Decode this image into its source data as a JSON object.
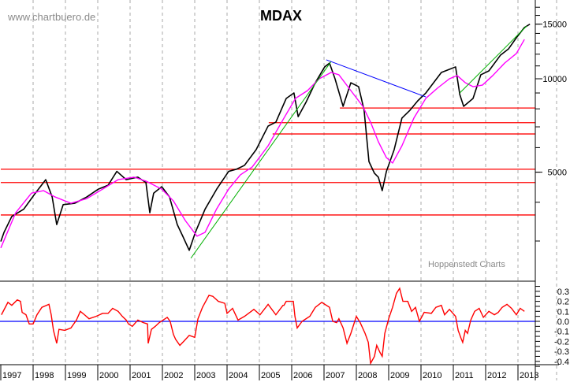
{
  "header": {
    "watermark": "www.chartbuero.de",
    "title": "MDAX",
    "source": "Hoppenstedt Charts"
  },
  "chart_data": [
    {
      "type": "line",
      "title": "MDAX",
      "yscale": "log",
      "ylim": [
        2230,
        18000
      ],
      "xlim": [
        1997.0,
        2013.5
      ],
      "grid": "vertical dashed at years",
      "y_tick_labels": [
        "15000",
        "10000",
        "5000"
      ],
      "y_ticks_minor": [
        3000,
        4000,
        5000,
        6000,
        7000,
        8000,
        9000,
        10000,
        11000,
        12000,
        13000,
        14000,
        15000,
        16000,
        17000
      ],
      "x_tick_labels": [
        "1997",
        "1998",
        "1999",
        "2000",
        "2001",
        "2002",
        "2003",
        "2004",
        "2005",
        "2006",
        "2007",
        "2008",
        "2009",
        "2010",
        "2011",
        "2012",
        "2013"
      ],
      "colors": {
        "price": "#000000",
        "moving_average": "#ff00ff",
        "support_lines": "#ff0000",
        "uptrend": "#00b000",
        "downtrend": "#0000ff"
      },
      "series": [
        {
          "role": "price",
          "points": [
            [
              1997.0,
              2990
            ],
            [
              1997.1,
              3200
            ],
            [
              1997.34,
              3600
            ],
            [
              1997.71,
              3800
            ],
            [
              1998.07,
              4280
            ],
            [
              1998.39,
              4730
            ],
            [
              1998.59,
              4160
            ],
            [
              1998.73,
              3390
            ],
            [
              1998.93,
              3930
            ],
            [
              1999.29,
              3970
            ],
            [
              1999.66,
              4160
            ],
            [
              2000.02,
              4410
            ],
            [
              2000.32,
              4540
            ],
            [
              2000.59,
              5030
            ],
            [
              2000.88,
              4730
            ],
            [
              2001.24,
              4820
            ],
            [
              2001.49,
              4630
            ],
            [
              2001.61,
              3700
            ],
            [
              2001.73,
              4280
            ],
            [
              2001.98,
              4490
            ],
            [
              2002.22,
              4160
            ],
            [
              2002.46,
              3390
            ],
            [
              2002.63,
              3110
            ],
            [
              2002.83,
              2800
            ],
            [
              2003.02,
              3200
            ],
            [
              2003.32,
              3800
            ],
            [
              2003.68,
              4410
            ],
            [
              2004.05,
              5030
            ],
            [
              2004.29,
              5110
            ],
            [
              2004.54,
              5260
            ],
            [
              2004.9,
              5910
            ],
            [
              2005.27,
              7040
            ],
            [
              2005.51,
              7250
            ],
            [
              2005.83,
              8640
            ],
            [
              2006.07,
              9000
            ],
            [
              2006.2,
              7550
            ],
            [
              2006.44,
              8390
            ],
            [
              2006.73,
              9710
            ],
            [
              2007.02,
              10920
            ],
            [
              2007.17,
              11230
            ],
            [
              2007.34,
              10000
            ],
            [
              2007.59,
              8150
            ],
            [
              2007.83,
              9710
            ],
            [
              2008.07,
              9430
            ],
            [
              2008.24,
              7920
            ],
            [
              2008.39,
              5410
            ],
            [
              2008.56,
              4960
            ],
            [
              2008.68,
              4820
            ],
            [
              2008.8,
              4360
            ],
            [
              2008.93,
              5030
            ],
            [
              2009.17,
              5910
            ],
            [
              2009.41,
              7470
            ],
            [
              2009.66,
              7920
            ],
            [
              2009.9,
              8490
            ],
            [
              2010.15,
              9000
            ],
            [
              2010.39,
              9710
            ],
            [
              2010.63,
              10480
            ],
            [
              2010.88,
              10730
            ],
            [
              2011.07,
              10920
            ],
            [
              2011.2,
              8900
            ],
            [
              2011.32,
              8150
            ],
            [
              2011.61,
              8640
            ],
            [
              2011.85,
              10300
            ],
            [
              2012.1,
              10600
            ],
            [
              2012.46,
              11920
            ],
            [
              2012.71,
              12490
            ],
            [
              2012.95,
              13550
            ],
            [
              2013.2,
              14630
            ],
            [
              2013.37,
              15000
            ]
          ]
        },
        {
          "role": "moving_average",
          "points": [
            [
              1997.0,
              2850
            ],
            [
              1997.46,
              3700
            ],
            [
              1997.95,
              4280
            ],
            [
              1998.32,
              4360
            ],
            [
              1998.68,
              4160
            ],
            [
              1999.17,
              3970
            ],
            [
              1999.66,
              4110
            ],
            [
              2000.15,
              4410
            ],
            [
              2000.63,
              4730
            ],
            [
              2001.12,
              4820
            ],
            [
              2001.49,
              4680
            ],
            [
              2001.98,
              4410
            ],
            [
              2002.34,
              4040
            ],
            [
              2002.71,
              3490
            ],
            [
              2003.07,
              3110
            ],
            [
              2003.32,
              3200
            ],
            [
              2003.68,
              3810
            ],
            [
              2004.05,
              4410
            ],
            [
              2004.41,
              4900
            ],
            [
              2004.78,
              5200
            ],
            [
              2005.27,
              6080
            ],
            [
              2005.76,
              7470
            ],
            [
              2006.12,
              8650
            ],
            [
              2006.49,
              9160
            ],
            [
              2006.85,
              10000
            ],
            [
              2007.22,
              10480
            ],
            [
              2007.46,
              10300
            ],
            [
              2007.83,
              9160
            ],
            [
              2008.2,
              8150
            ],
            [
              2008.44,
              7250
            ],
            [
              2008.68,
              6270
            ],
            [
              2008.93,
              5570
            ],
            [
              2009.12,
              5350
            ],
            [
              2009.41,
              6080
            ],
            [
              2009.78,
              7470
            ],
            [
              2010.15,
              8650
            ],
            [
              2010.51,
              9330
            ],
            [
              2010.88,
              10000
            ],
            [
              2011.12,
              10240
            ],
            [
              2011.37,
              9710
            ],
            [
              2011.61,
              9430
            ],
            [
              2011.9,
              9540
            ],
            [
              2012.22,
              10240
            ],
            [
              2012.59,
              11240
            ],
            [
              2012.95,
              12060
            ],
            [
              2013.2,
              13390
            ]
          ]
        }
      ],
      "horizontal_lines": [
        {
          "value": 8050,
          "from": 2007.49
        },
        {
          "value": 7220,
          "from": 2005.29
        },
        {
          "value": 6640,
          "from": 2005.41
        },
        {
          "value": 5110,
          "from": 1997.0
        },
        {
          "value": 4630,
          "from": 1997.0
        },
        {
          "value": 3640,
          "from": 1997.0
        }
      ],
      "trend_lines": [
        {
          "role": "uptrend",
          "start": [
            2002.88,
            2640
          ],
          "end": [
            2007.22,
            11370
          ]
        },
        {
          "role": "uptrend",
          "start": [
            2011.2,
            9000
          ],
          "end": [
            2013.27,
            14790
          ]
        },
        {
          "role": "downtrend",
          "start": [
            2007.07,
            11510
          ],
          "end": [
            2010.15,
            8740
          ]
        }
      ]
    },
    {
      "type": "line",
      "ylim": [
        -0.47,
        0.4
      ],
      "y_tick_labels": [
        "0.3",
        "0.2",
        "0.1",
        "0.0",
        "-0.1",
        "-0.2",
        "-0.3",
        "-0.4"
      ],
      "reference_line": 0.0,
      "colors": {
        "oscillator": "#ff0000",
        "reference": "#0000ff"
      },
      "series": [
        {
          "role": "oscillator",
          "points": [
            [
              1997.02,
              0.066
            ],
            [
              1997.22,
              0.19
            ],
            [
              1997.34,
              0.16
            ],
            [
              1997.51,
              0.215
            ],
            [
              1997.61,
              0.2
            ],
            [
              1997.66,
              0.09
            ],
            [
              1997.78,
              0.066
            ],
            [
              1997.88,
              -0.026
            ],
            [
              1998.0,
              -0.026
            ],
            [
              1998.12,
              0.066
            ],
            [
              1998.27,
              0.14
            ],
            [
              1998.49,
              0.17
            ],
            [
              1998.56,
              0.066
            ],
            [
              1998.63,
              -0.09
            ],
            [
              1998.73,
              -0.22
            ],
            [
              1998.8,
              -0.08
            ],
            [
              1998.98,
              -0.09
            ],
            [
              1999.17,
              -0.066
            ],
            [
              1999.34,
              0.013
            ],
            [
              1999.46,
              0.1
            ],
            [
              1999.59,
              0.066
            ],
            [
              1999.73,
              0.026
            ],
            [
              1999.95,
              0.05
            ],
            [
              2000.15,
              0.08
            ],
            [
              2000.32,
              0.08
            ],
            [
              2000.46,
              0.13
            ],
            [
              2000.63,
              0.1
            ],
            [
              2000.76,
              0.05
            ],
            [
              2000.88,
              0.013
            ],
            [
              2000.95,
              -0.026
            ],
            [
              2001.07,
              -0.05
            ],
            [
              2001.24,
              0.013
            ],
            [
              2001.41,
              -0.013
            ],
            [
              2001.54,
              -0.026
            ],
            [
              2001.56,
              -0.22
            ],
            [
              2001.66,
              -0.08
            ],
            [
              2001.78,
              -0.05
            ],
            [
              2001.9,
              -0.013
            ],
            [
              2002.15,
              0.04
            ],
            [
              2002.24,
              0.0
            ],
            [
              2002.34,
              -0.13
            ],
            [
              2002.41,
              -0.18
            ],
            [
              2002.54,
              -0.24
            ],
            [
              2002.66,
              -0.2
            ],
            [
              2002.83,
              -0.14
            ],
            [
              2003.0,
              -0.16
            ],
            [
              2003.1,
              0.026
            ],
            [
              2003.24,
              0.14
            ],
            [
              2003.44,
              0.26
            ],
            [
              2003.56,
              0.25
            ],
            [
              2003.73,
              0.2
            ],
            [
              2003.93,
              0.18
            ],
            [
              2004.0,
              0.08
            ],
            [
              2004.17,
              0.13
            ],
            [
              2004.34,
              0.013
            ],
            [
              2004.54,
              0.05
            ],
            [
              2004.83,
              0.12
            ],
            [
              2005.02,
              0.066
            ],
            [
              2005.27,
              0.17
            ],
            [
              2005.51,
              0.066
            ],
            [
              2005.73,
              0.16
            ],
            [
              2005.76,
              0.16
            ],
            [
              2005.83,
              0.2
            ],
            [
              2006.05,
              0.2
            ],
            [
              2006.1,
              0.05
            ],
            [
              2006.17,
              -0.066
            ],
            [
              2006.32,
              0.0
            ],
            [
              2006.56,
              0.05
            ],
            [
              2006.73,
              0.14
            ],
            [
              2006.93,
              0.19
            ],
            [
              2007.17,
              0.14
            ],
            [
              2007.27,
              0.0
            ],
            [
              2007.39,
              -0.013
            ],
            [
              2007.46,
              0.026
            ],
            [
              2007.59,
              -0.066
            ],
            [
              2007.71,
              -0.22
            ],
            [
              2007.83,
              -0.12
            ],
            [
              2008.0,
              0.05
            ],
            [
              2008.12,
              -0.013
            ],
            [
              2008.27,
              -0.12
            ],
            [
              2008.37,
              -0.21
            ],
            [
              2008.44,
              -0.42
            ],
            [
              2008.56,
              -0.35
            ],
            [
              2008.63,
              -0.24
            ],
            [
              2008.73,
              -0.31
            ],
            [
              2008.8,
              -0.35
            ],
            [
              2008.88,
              -0.12
            ],
            [
              2009.0,
              0.026
            ],
            [
              2009.12,
              0.14
            ],
            [
              2009.24,
              0.28
            ],
            [
              2009.34,
              0.33
            ],
            [
              2009.44,
              0.2
            ],
            [
              2009.59,
              0.2
            ],
            [
              2009.71,
              0.1
            ],
            [
              2009.83,
              0.14
            ],
            [
              2009.95,
              0.0
            ],
            [
              2010.1,
              0.09
            ],
            [
              2010.32,
              0.08
            ],
            [
              2010.46,
              0.14
            ],
            [
              2010.63,
              0.16
            ],
            [
              2010.73,
              0.066
            ],
            [
              2010.88,
              0.12
            ],
            [
              2011.07,
              0.05
            ],
            [
              2011.15,
              -0.09
            ],
            [
              2011.24,
              -0.17
            ],
            [
              2011.29,
              -0.21
            ],
            [
              2011.37,
              -0.09
            ],
            [
              2011.44,
              -0.12
            ],
            [
              2011.54,
              0.013
            ],
            [
              2011.66,
              0.1
            ],
            [
              2011.8,
              0.13
            ],
            [
              2011.93,
              0.04
            ],
            [
              2012.1,
              0.1
            ],
            [
              2012.27,
              0.066
            ],
            [
              2012.39,
              0.09
            ],
            [
              2012.51,
              0.14
            ],
            [
              2012.66,
              0.17
            ],
            [
              2012.8,
              0.13
            ],
            [
              2012.95,
              0.066
            ],
            [
              2013.07,
              0.13
            ],
            [
              2013.2,
              0.1
            ]
          ]
        }
      ]
    }
  ]
}
